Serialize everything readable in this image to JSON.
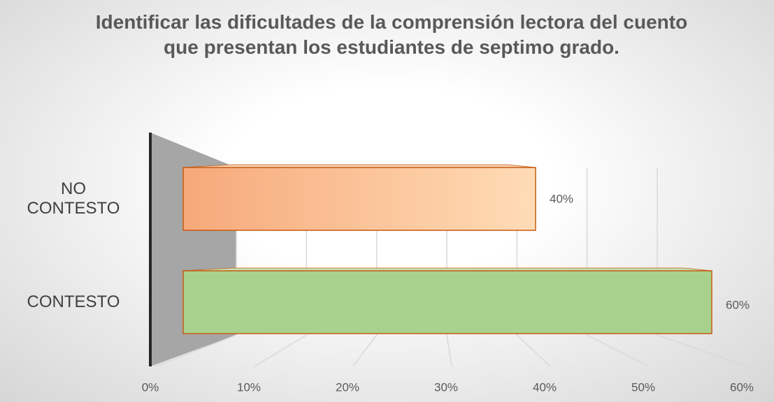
{
  "chart_data": {
    "type": "bar3d_horizontal",
    "title": "Identificar las dificultades de la comprensión lectora del cuento que presentan los estudiantes de septimo grado.",
    "categories": [
      "NO CONTESTO",
      "CONTESTO"
    ],
    "series": [
      {
        "name": null,
        "colors": [
          "#f8b88b",
          "#a9d18e"
        ],
        "values": [
          40,
          60
        ],
        "value_labels": [
          "40%",
          "60%"
        ]
      }
    ],
    "xlim": [
      0,
      60
    ],
    "xticks": [
      {
        "value": 0,
        "label": "0%"
      },
      {
        "value": 10,
        "label": "10%"
      },
      {
        "value": 20,
        "label": "20%"
      },
      {
        "value": 30,
        "label": "30%"
      },
      {
        "value": 40,
        "label": "40%"
      },
      {
        "value": 50,
        "label": "50%"
      },
      {
        "value": 60,
        "label": "60%"
      }
    ],
    "grid": true
  }
}
